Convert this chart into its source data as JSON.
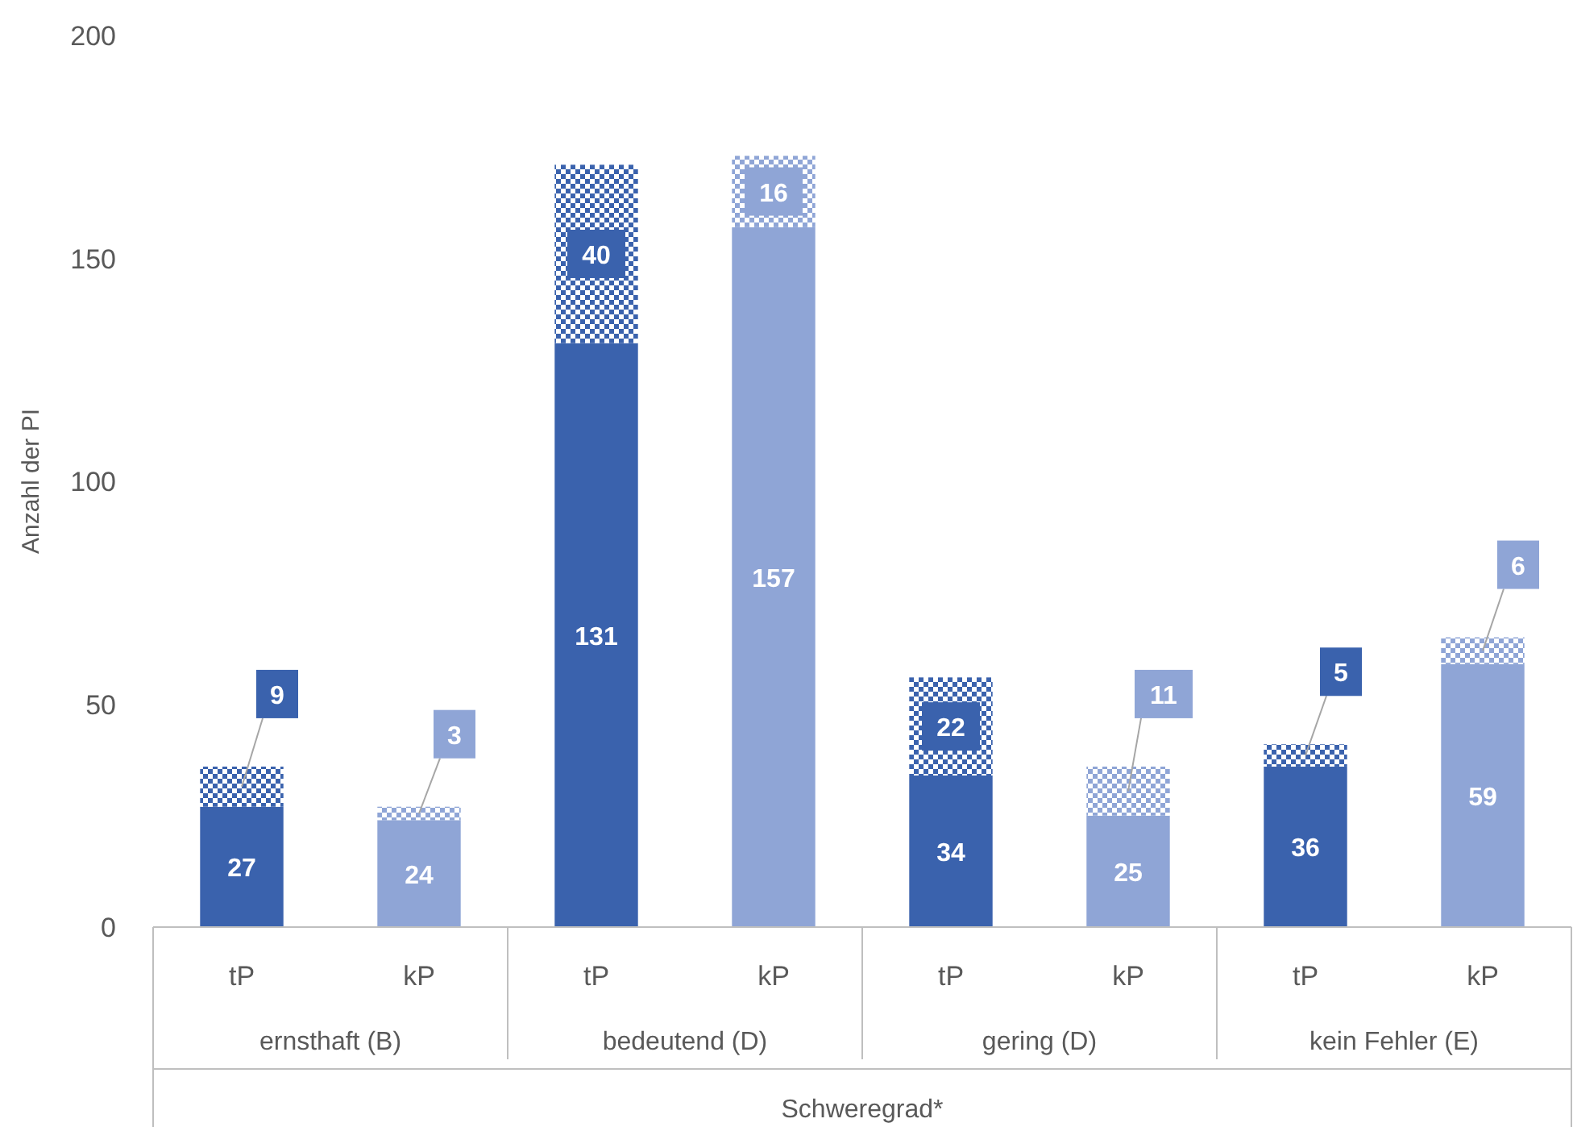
{
  "chart_data": {
    "type": "bar",
    "stacked": true,
    "xlabel": "Schweregrad*",
    "ylabel": "Anzahl der PI",
    "categories": [
      "tP",
      "kP",
      "tP",
      "kP",
      "tP",
      "kP",
      "tP",
      "kP"
    ],
    "annotations": [
      "ernsthaft (B)",
      "bedeutend (D)",
      "gering (D)",
      "kein Fehler (E)"
    ],
    "series": [
      {
        "colors": [
          "#3a62ad",
          "#8fa5d6",
          "#3a62ad",
          "#8fa5d6",
          "#3a62ad",
          "#8fa5d6",
          "#3a62ad",
          "#8fa5d6"
        ],
        "values": [
          27,
          24,
          131,
          157,
          34,
          25,
          36,
          59
        ]
      },
      {
        "colors": [
          "#3a62ad",
          "#8fa5d6",
          "#3a62ad",
          "#8fa5d6",
          "#3a62ad",
          "#8fa5d6",
          "#3a62ad",
          "#8fa5d6"
        ],
        "values": [
          9,
          3,
          40,
          16,
          22,
          11,
          5,
          6
        ]
      }
    ],
    "ylim": [
      0,
      200
    ],
    "yticks": [
      0,
      50,
      100,
      150,
      200
    ],
    "grid": false,
    "data_labels": true
  }
}
